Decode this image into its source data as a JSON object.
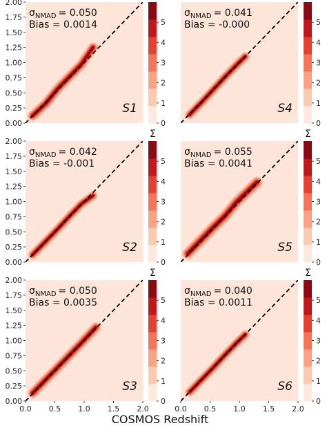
{
  "chart_data": {
    "type": "heatmap",
    "xlabel": "COSMOS Redshift",
    "ylabel": "",
    "xlim": [
      0.0,
      2.0
    ],
    "ylim": [
      0.0,
      2.0
    ],
    "x_ticks": [
      "0.0",
      "0.5",
      "1.0",
      "1.5",
      "2.0"
    ],
    "y_ticks": [
      "0.00",
      "0.25",
      "0.50",
      "0.75",
      "1.00",
      "1.25",
      "1.50",
      "1.75",
      "2.00"
    ],
    "colorbar": {
      "title": "Σ",
      "ticks": [
        "0",
        "1",
        "2",
        "3",
        "4",
        "5"
      ],
      "range": [
        0,
        6
      ],
      "colors": [
        "#fde9df",
        "#fcc9b1",
        "#fca184",
        "#f87458",
        "#e6402f",
        "#c3171c",
        "#8c0a13"
      ]
    },
    "background_color": "#fde5d9",
    "diagonal_line": "y = x (dashed)",
    "panels": [
      {
        "id": "S1",
        "label": "S1",
        "sigma_label": "σ",
        "sigma_sub": "NMAD",
        "sigma_value": "= 0.050",
        "bias_text": "Bias = 0.0014",
        "path": [
          [
            0.12,
            0.12
          ],
          [
            0.35,
            0.33
          ],
          [
            0.55,
            0.57
          ],
          [
            0.75,
            0.77
          ],
          [
            0.95,
            0.97
          ],
          [
            1.15,
            1.25
          ]
        ],
        "width": 0.09
      },
      {
        "id": "S4",
        "label": "S4",
        "sigma_label": "σ",
        "sigma_sub": "NMAD",
        "sigma_value": "= 0.041",
        "bias_text": "Bias = -0.000",
        "path": [
          [
            0.15,
            0.14
          ],
          [
            0.35,
            0.34
          ],
          [
            0.55,
            0.55
          ],
          [
            0.75,
            0.76
          ],
          [
            0.95,
            0.96
          ],
          [
            1.1,
            1.1
          ]
        ],
        "width": 0.08
      },
      {
        "id": "S2",
        "label": "S2",
        "sigma_label": "σ",
        "sigma_sub": "NMAD",
        "sigma_value": "= 0.042",
        "bias_text": "Bias = -0.001",
        "path": [
          [
            0.12,
            0.12
          ],
          [
            0.35,
            0.35
          ],
          [
            0.55,
            0.55
          ],
          [
            0.75,
            0.76
          ],
          [
            0.95,
            0.96
          ],
          [
            1.15,
            1.1
          ]
        ],
        "width": 0.08
      },
      {
        "id": "S5",
        "label": "S5",
        "sigma_label": "σ",
        "sigma_sub": "NMAD",
        "sigma_value": "= 0.055",
        "bias_text": "Bias = 0.0041",
        "path": [
          [
            0.12,
            0.14
          ],
          [
            0.35,
            0.37
          ],
          [
            0.55,
            0.57
          ],
          [
            0.75,
            0.76
          ],
          [
            0.95,
            0.99
          ],
          [
            1.3,
            1.32
          ]
        ],
        "width": 0.1
      },
      {
        "id": "S3",
        "label": "S3",
        "sigma_label": "σ",
        "sigma_sub": "NMAD",
        "sigma_value": "= 0.050",
        "bias_text": "Bias = 0.0035",
        "path": [
          [
            0.12,
            0.13
          ],
          [
            0.35,
            0.36
          ],
          [
            0.55,
            0.56
          ],
          [
            0.75,
            0.76
          ],
          [
            0.95,
            0.96
          ],
          [
            1.2,
            1.22
          ]
        ],
        "width": 0.09
      },
      {
        "id": "S6",
        "label": "S6",
        "sigma_label": "σ",
        "sigma_sub": "NMAD",
        "sigma_value": "= 0.040",
        "bias_text": "Bias = 0.0011",
        "path": [
          [
            0.15,
            0.15
          ],
          [
            0.35,
            0.35
          ],
          [
            0.55,
            0.55
          ],
          [
            0.75,
            0.76
          ],
          [
            0.95,
            0.96
          ],
          [
            1.1,
            1.1
          ]
        ],
        "width": 0.08
      }
    ]
  }
}
